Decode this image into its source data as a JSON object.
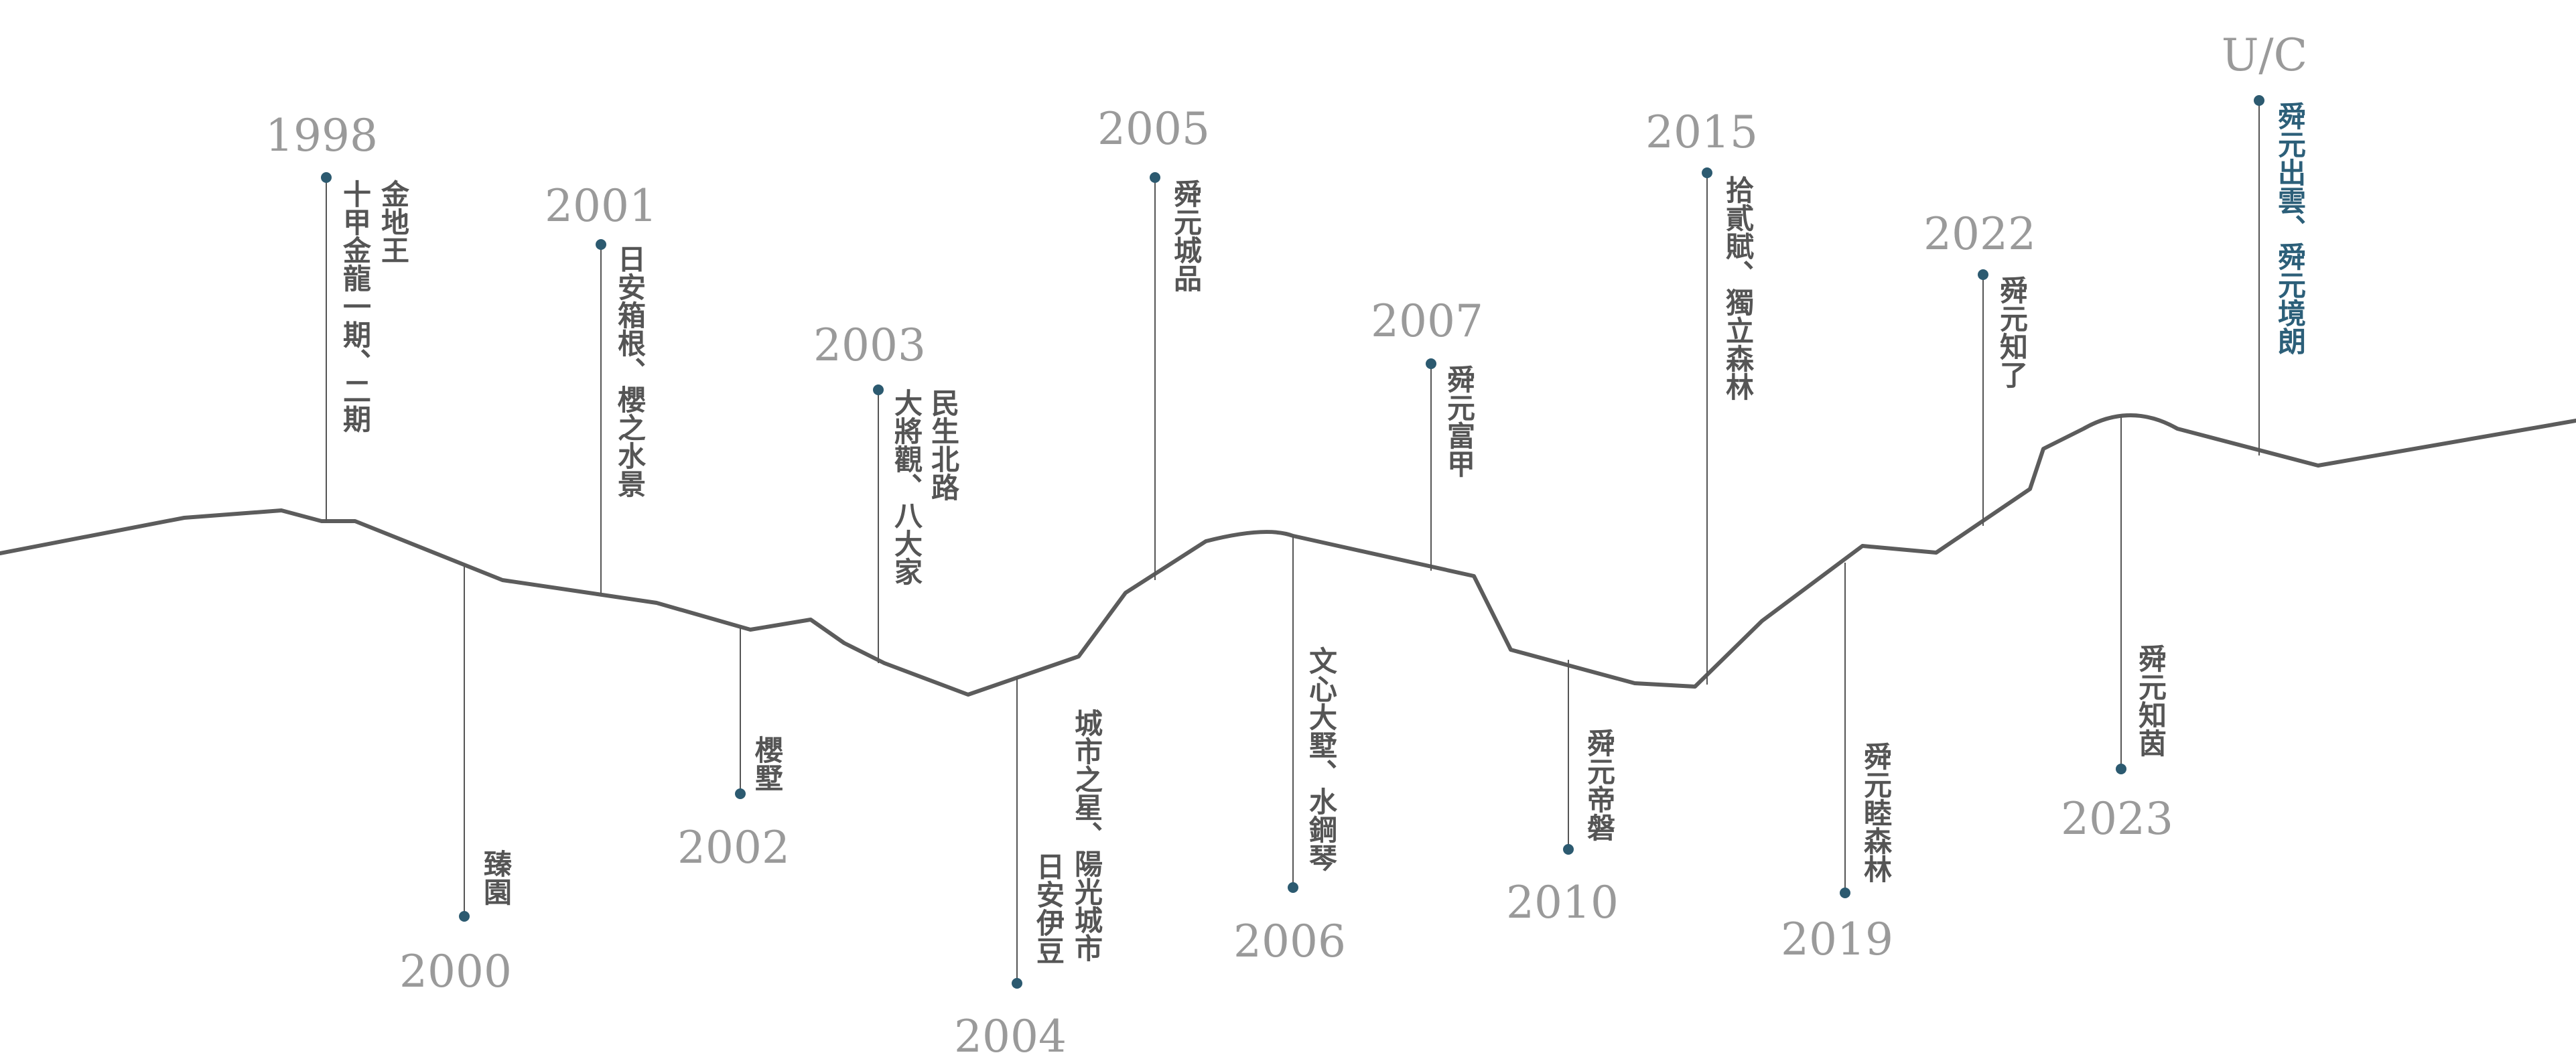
{
  "colors": {
    "line": "#5c5c5c",
    "stem": "#555555",
    "dot": "#2c5a70",
    "year": "#9a9a9a",
    "text": "#555555",
    "accent": "#2c5f79"
  },
  "milestones": [
    {
      "year": "1998",
      "projects": [
        "金地王",
        "十甲金龍一期、二期"
      ],
      "side": "above"
    },
    {
      "year": "2000",
      "projects": [
        "臻園"
      ],
      "side": "below"
    },
    {
      "year": "2001",
      "projects": [
        "日安箱根、櫻之水景"
      ],
      "side": "above"
    },
    {
      "year": "2002",
      "projects": [
        "櫻墅"
      ],
      "side": "below"
    },
    {
      "year": "2003",
      "projects": [
        "民生北路",
        "大將觀、八大家"
      ],
      "side": "above"
    },
    {
      "year": "2004",
      "projects": [
        "城市之星、陽光城市",
        "日安伊豆"
      ],
      "side": "below"
    },
    {
      "year": "2005",
      "projects": [
        "舜元城品"
      ],
      "side": "above"
    },
    {
      "year": "2006",
      "projects": [
        "文心大墅、水鋼琴"
      ],
      "side": "below"
    },
    {
      "year": "2007",
      "projects": [
        "舜元富甲"
      ],
      "side": "above"
    },
    {
      "year": "2010",
      "projects": [
        "舜元帝磐"
      ],
      "side": "below"
    },
    {
      "year": "2015",
      "projects": [
        "拾貳賦、獨立森林"
      ],
      "side": "above"
    },
    {
      "year": "2019",
      "projects": [
        "舜元睦森林"
      ],
      "side": "below"
    },
    {
      "year": "2022",
      "projects": [
        "舜元知了"
      ],
      "side": "above"
    },
    {
      "year": "2023",
      "projects": [
        "舜元知茵"
      ],
      "side": "below"
    },
    {
      "year": "U/C",
      "projects": [
        "舜元出雲、舜元境朗"
      ],
      "side": "above",
      "highlight": true
    }
  ]
}
